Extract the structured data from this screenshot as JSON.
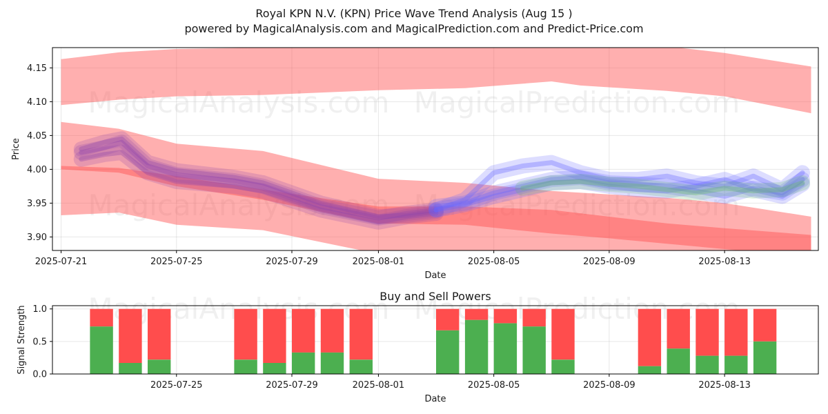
{
  "header": {
    "title": "Royal KPN N.V. (KPN) Price Wave Trend Analysis (Aug 15 )",
    "subtitle": "powered by MagicalAnalysis.com and MagicalPrediction.com and Predict-Price.com"
  },
  "watermarks": [
    "MagicalAnalysis.com",
    "MagicalPrediction.com"
  ],
  "colors": {
    "red_band": "#ff4d4d",
    "buy": "#4caf50",
    "sell": "#ff4d4d",
    "purple": "#8e44ad",
    "blue": "#6666ff",
    "green": "#66bb6a"
  },
  "chart_data": [
    {
      "type": "area",
      "title": "Royal KPN N.V. (KPN) Price Wave Trend Analysis (Aug 15 )",
      "xlabel": "Date",
      "ylabel": "Price",
      "x_start": "2025-07-21",
      "xlim_days": [
        -0.3,
        26.25
      ],
      "ylim": [
        3.88,
        4.18
      ],
      "yticks": [
        3.9,
        3.95,
        4.0,
        4.05,
        4.1,
        4.15
      ],
      "xticks": [
        {
          "day": 0,
          "label": "2025-07-21"
        },
        {
          "day": 4,
          "label": "2025-07-25"
        },
        {
          "day": 8,
          "label": "2025-07-29"
        },
        {
          "day": 11,
          "label": "2025-08-01"
        },
        {
          "day": 15,
          "label": "2025-08-05"
        },
        {
          "day": 19,
          "label": "2025-08-09"
        },
        {
          "day": 23,
          "label": "2025-08-13"
        }
      ],
      "grid": true,
      "red_bands": [
        {
          "name": "upper",
          "x": [
            0,
            2,
            4,
            7,
            11,
            14,
            17,
            18,
            21,
            23,
            26
          ],
          "upper": [
            4.163,
            4.173,
            4.178,
            4.18,
            4.182,
            4.185,
            4.19,
            4.185,
            4.182,
            4.172,
            4.152
          ],
          "lower": [
            4.095,
            4.103,
            4.108,
            4.11,
            4.117,
            4.12,
            4.13,
            4.124,
            4.116,
            4.108,
            4.083
          ]
        },
        {
          "name": "middle",
          "x": [
            0,
            2,
            4,
            7,
            11,
            14,
            17,
            19,
            21,
            23,
            26
          ],
          "upper": [
            4.07,
            4.06,
            4.038,
            4.027,
            3.986,
            3.98,
            3.968,
            3.963,
            3.958,
            3.95,
            3.93
          ],
          "lower": [
            4.0,
            3.995,
            3.975,
            3.955,
            3.92,
            3.918,
            3.905,
            3.898,
            3.89,
            3.882,
            3.87
          ]
        },
        {
          "name": "lower",
          "x": [
            0,
            2,
            4,
            7,
            11,
            14,
            17,
            19,
            21,
            23,
            26
          ],
          "upper": [
            4.005,
            4.002,
            3.99,
            3.97,
            3.945,
            3.945,
            3.94,
            3.93,
            3.92,
            3.913,
            3.903
          ],
          "lower": [
            3.932,
            3.936,
            3.918,
            3.91,
            3.875,
            3.87,
            3.862,
            3.858,
            3.852,
            3.848,
            3.842
          ]
        }
      ],
      "price_series": [
        {
          "name": "purple-1",
          "color": "#8e44ad",
          "x": [
            0.7,
            1.5,
            2.1,
            3,
            4,
            6,
            7,
            9,
            11,
            12,
            13
          ],
          "y": [
            4.025,
            4.032,
            4.04,
            4.005,
            3.992,
            3.983,
            3.975,
            3.945,
            3.928,
            3.935,
            3.94
          ]
        },
        {
          "name": "purple-2",
          "color": "#8e44ad",
          "x": [
            0.7,
            1.5,
            2.1,
            3,
            4,
            6,
            7,
            9,
            11,
            12,
            13
          ],
          "y": [
            4.015,
            4.022,
            4.025,
            3.995,
            3.982,
            3.975,
            3.968,
            3.94,
            3.922,
            3.93,
            3.935
          ]
        },
        {
          "name": "purple-3",
          "color": "#8e44ad",
          "x": [
            0.7,
            1.5,
            2.1,
            3,
            4,
            6,
            7,
            9,
            11,
            12,
            13
          ],
          "y": [
            4.03,
            4.04,
            4.045,
            4.01,
            3.998,
            3.988,
            3.98,
            3.95,
            3.93,
            3.932,
            3.938
          ]
        },
        {
          "name": "blue-1",
          "color": "#6666ff",
          "x": [
            13,
            14,
            15,
            16,
            17,
            18,
            19,
            20,
            21,
            22,
            23,
            24,
            25,
            25.7
          ],
          "y": [
            3.94,
            3.955,
            3.995,
            4.005,
            4.01,
            3.995,
            3.985,
            3.985,
            3.99,
            3.98,
            3.975,
            3.99,
            3.97,
            3.995
          ]
        },
        {
          "name": "blue-2",
          "color": "#6666ff",
          "x": [
            13,
            14,
            15,
            16,
            17,
            18,
            19,
            20,
            21,
            22,
            23,
            24,
            25,
            25.7
          ],
          "y": [
            3.945,
            3.95,
            3.965,
            3.975,
            3.985,
            3.988,
            3.98,
            3.978,
            3.975,
            3.968,
            3.96,
            3.972,
            3.965,
            3.985
          ]
        },
        {
          "name": "blue-3",
          "color": "#6666ff",
          "x": [
            13,
            14,
            15,
            16,
            17,
            18,
            19,
            20,
            21,
            22,
            23,
            24,
            25,
            25.7
          ],
          "y": [
            3.94,
            3.948,
            3.96,
            3.97,
            3.98,
            3.982,
            3.975,
            3.97,
            3.968,
            3.975,
            3.985,
            3.97,
            3.96,
            3.978
          ]
        },
        {
          "name": "green-1",
          "color": "#66bb6a",
          "x": [
            16,
            17,
            18,
            19,
            20,
            21,
            22,
            23,
            24,
            25,
            25.7
          ],
          "y": [
            3.972,
            3.98,
            3.982,
            3.978,
            3.975,
            3.97,
            3.965,
            3.972,
            3.968,
            3.97,
            3.98
          ]
        }
      ]
    },
    {
      "type": "bar",
      "title": "Buy and Sell Powers",
      "xlabel": "Date",
      "ylabel": "Signal Strength",
      "ylim": [
        0,
        1.05
      ],
      "yticks": [
        0.0,
        0.5,
        1.0
      ],
      "xlim_days": [
        -0.3,
        26.25
      ],
      "xticks": [
        {
          "day": 4,
          "label": "2025-07-25"
        },
        {
          "day": 8,
          "label": "2025-07-29"
        },
        {
          "day": 11,
          "label": "2025-08-01"
        },
        {
          "day": 15,
          "label": "2025-08-05"
        },
        {
          "day": 19,
          "label": "2025-08-09"
        },
        {
          "day": 23,
          "label": "2025-08-13"
        }
      ],
      "series": [
        {
          "name": "Buy",
          "color": "#4caf50"
        },
        {
          "name": "Sell",
          "color": "#ff4d4d"
        }
      ],
      "days": [
        1.4,
        2.4,
        3.4,
        6.4,
        7.4,
        8.4,
        9.4,
        10.4,
        13.4,
        14.4,
        15.4,
        16.4,
        17.4,
        20.4,
        21.4,
        22.4,
        23.4,
        24.4
      ],
      "buy": [
        0.73,
        0.17,
        0.22,
        0.22,
        0.17,
        0.33,
        0.33,
        0.22,
        0.67,
        0.83,
        0.78,
        0.73,
        0.22,
        0.12,
        0.39,
        0.28,
        0.28,
        0.5
      ]
    }
  ]
}
